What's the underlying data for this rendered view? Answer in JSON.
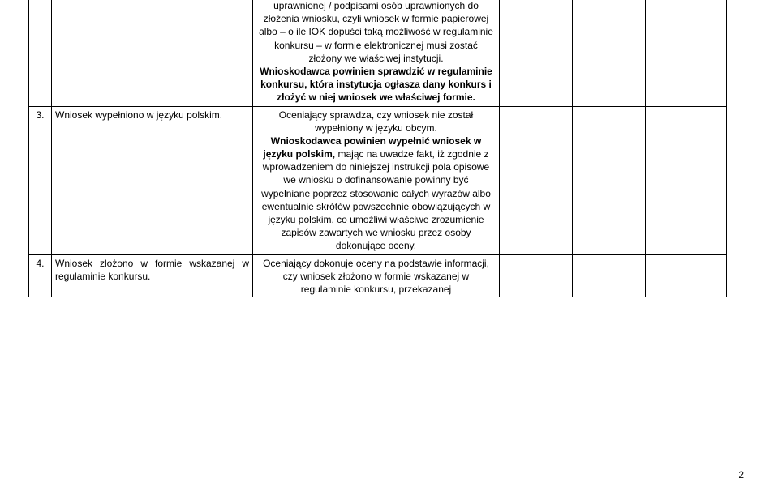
{
  "page_number": "2",
  "rows": [
    {
      "num": "",
      "criterion": "",
      "desc_top": "uprawnionej / podpisami osób uprawnionych do złożenia wniosku, czyli wniosek w formie papierowej albo – o ile IOK dopuści taką możliwość w regulaminie konkursu – w formie elektronicznej musi zostać złożony we właściwej instytucji.",
      "desc_bold": "Wnioskodawca powinien sprawdzić w regulaminie konkursu, która instytucja ogłasza dany konkurs i złożyć w niej wniosek we właściwej formie."
    },
    {
      "num": "3.",
      "criterion": "Wniosek wypełniono w języku polskim.",
      "desc_top": "Oceniający sprawdza, czy wniosek nie został wypełniony w języku obcym.",
      "desc_bold_lead": "Wnioskodawca powinien wypełnić wniosek w języku polskim,",
      "desc_bold_rest": " mając na uwadze fakt, iż zgodnie z wprowadzeniem do niniejszej instrukcji pola opisowe we wniosku o dofinansowanie powinny być wypełniane poprzez stosowanie całych wyrazów albo ewentualnie skrótów powszechnie obowiązujących w języku polskim, co umożliwi właściwe zrozumienie zapisów zawartych we wniosku przez osoby dokonujące oceny."
    },
    {
      "num": "4.",
      "criterion": "Wniosek złożono w formie wskazanej w regulaminie konkursu.",
      "desc_top": "Oceniający dokonuje oceny na podstawie informacji, czy wniosek złożono w formie wskazanej w regulaminie konkursu, przekazanej"
    }
  ]
}
